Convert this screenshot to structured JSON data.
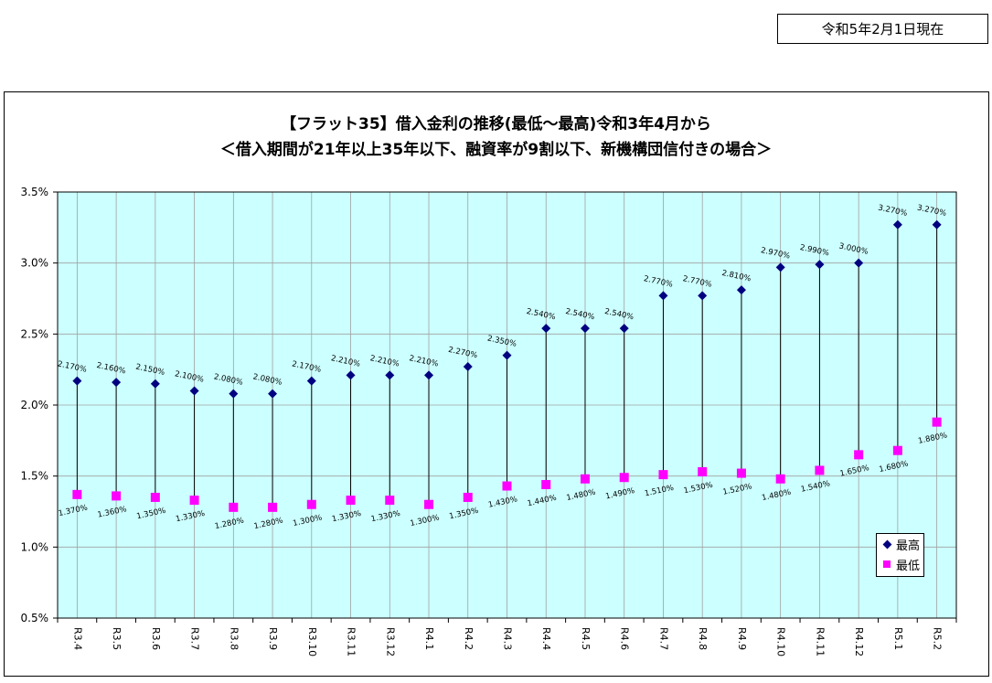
{
  "date_label": "令和5年2月1日現在",
  "title_line1": "【フラット35】借入金利の推移(最低～最高)令和3年4月から",
  "title_line2": "＜借入期間が21年以上35年以下、融資率が9割以下、新機構団信付きの場合＞",
  "legend": {
    "max_label": "最高",
    "min_label": "最低"
  },
  "colors": {
    "plot_bg": "#ccffff",
    "max_marker": "#000080",
    "min_marker": "#ff00ff",
    "grid": "#a0a0a0"
  },
  "chart_data": {
    "type": "scatter",
    "title": "【フラット35】借入金利の推移(最低～最高)令和3年4月から ＜借入期間が21年以上35年以下、融資率が9割以下、新機構団信付きの場合＞",
    "xlabel": "",
    "ylabel": "",
    "ylim": [
      0.5,
      3.5
    ],
    "y_ticks": [
      "0.5%",
      "1.0%",
      "1.5%",
      "2.0%",
      "2.5%",
      "3.0%",
      "3.5%"
    ],
    "grid": true,
    "legend_position": "bottom-right",
    "categories": [
      "R3.4",
      "R3.5",
      "R3.6",
      "R3.7",
      "R3.8",
      "R3.9",
      "R3.10",
      "R3.11",
      "R3.12",
      "R4.1",
      "R4.2",
      "R4.3",
      "R4.4",
      "R4.5",
      "R4.6",
      "R4.7",
      "R4.8",
      "R4.9",
      "R4.10",
      "R4.11",
      "R4.12",
      "R5.1",
      "R5.2"
    ],
    "series": [
      {
        "name": "最高",
        "values": [
          2.17,
          2.16,
          2.15,
          2.1,
          2.08,
          2.08,
          2.17,
          2.21,
          2.21,
          2.21,
          2.27,
          2.35,
          2.54,
          2.54,
          2.54,
          2.77,
          2.77,
          2.81,
          2.97,
          2.99,
          3.0,
          3.27,
          3.27
        ],
        "labels": [
          "2.170%",
          "2.160%",
          "2.150%",
          "2.100%",
          "2.080%",
          "2.080%",
          "2.170%",
          "2.210%",
          "2.210%",
          "2.210%",
          "2.270%",
          "2.350%",
          "2.540%",
          "2.540%",
          "2.540%",
          "2.770%",
          "2.770%",
          "2.810%",
          "2.970%",
          "2.990%",
          "3.000%",
          "3.270%",
          "3.270%"
        ]
      },
      {
        "name": "最低",
        "values": [
          1.37,
          1.36,
          1.35,
          1.33,
          1.28,
          1.28,
          1.3,
          1.33,
          1.33,
          1.3,
          1.35,
          1.43,
          1.44,
          1.48,
          1.49,
          1.51,
          1.53,
          1.52,
          1.48,
          1.54,
          1.65,
          1.68,
          1.88
        ],
        "labels": [
          "1.370%",
          "1.360%",
          "1.350%",
          "1.330%",
          "1.280%",
          "1.280%",
          "1.300%",
          "1.330%",
          "1.330%",
          "1.300%",
          "1.350%",
          "1.430%",
          "1.440%",
          "1.480%",
          "1.490%",
          "1.510%",
          "1.530%",
          "1.520%",
          "1.480%",
          "1.540%",
          "1.650%",
          "1.680%",
          "1.880%"
        ]
      }
    ]
  }
}
